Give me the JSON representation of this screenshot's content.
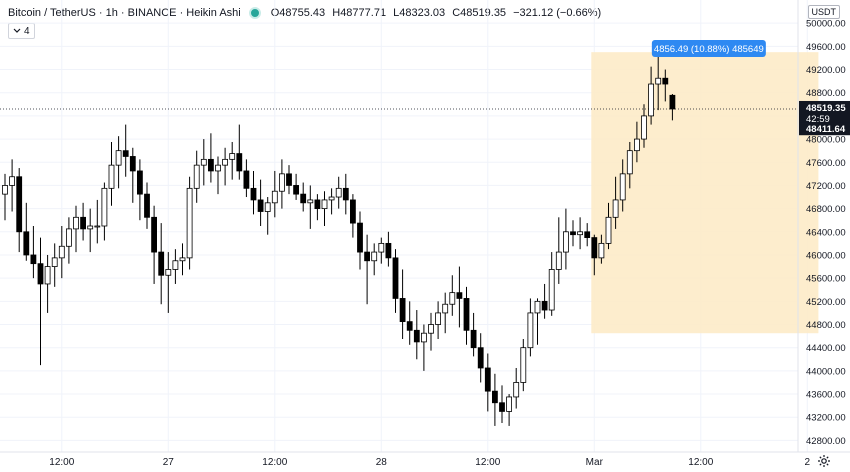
{
  "header": {
    "symbol": "Bitcoin / TetherUS · 1h · BINANCE · Heikin Ashi",
    "ohlc": [
      {
        "k": "O",
        "v": "48755.43"
      },
      {
        "k": "H",
        "v": "48777.71"
      },
      {
        "k": "L",
        "v": "48323.03"
      },
      {
        "k": "C",
        "v": "48519.35"
      },
      {
        "k": "",
        "v": "−321.12 (−0.66%)"
      }
    ],
    "indicator_toggle": "4",
    "currency": "USDT"
  },
  "colors": {
    "up_body": "#ffffff",
    "down_body": "#000000",
    "wick": "#000000",
    "range_fill": "#fdebc8",
    "range_label_bg": "#2e89f2",
    "price_label_bg": "#131722"
  },
  "chart_data": {
    "type": "candlestick",
    "ylim": [
      42600,
      50400
    ],
    "y_ticks": [
      42800,
      43200,
      43600,
      44000,
      44400,
      44800,
      45200,
      45600,
      46000,
      46400,
      46800,
      47200,
      47600,
      48000,
      48400,
      48800,
      49200,
      49600,
      50000
    ],
    "y_tick_labels": [
      "42800.00",
      "43200.00",
      "43600.00",
      "44000.00",
      "44400.00",
      "44800.00",
      "45200.00",
      "45600.00",
      "46000.00",
      "46400.00",
      "46800.00",
      "47200.00",
      "47600.00",
      "48000.00",
      "48400.00",
      "48800.00",
      "49200.00",
      "49600.00",
      "50000.00"
    ],
    "x_ticks": [
      "12:00",
      "27",
      "12:00",
      "28",
      "12:00",
      "Mar",
      "12:00",
      "2"
    ],
    "x_tick_bars": [
      8,
      23,
      38,
      53,
      68,
      83,
      98,
      113
    ],
    "last_price": {
      "value": 48519.35,
      "label": "48519.35",
      "countdown": "42:59",
      "line_value": 48411.64,
      "line_label": "48411.64"
    },
    "range_measure": {
      "start_bar": 83,
      "end_bar": 114,
      "low": 44650,
      "high": 49500,
      "label": "4856.49 (10.88%) 485649"
    },
    "candles": [
      {
        "o": 47050,
        "h": 47400,
        "l": 46600,
        "c": 47200
      },
      {
        "o": 47200,
        "h": 47650,
        "l": 46750,
        "c": 47350
      },
      {
        "o": 47350,
        "h": 47500,
        "l": 46050,
        "c": 46400
      },
      {
        "o": 46400,
        "h": 46900,
        "l": 45900,
        "c": 46000
      },
      {
        "o": 46000,
        "h": 46500,
        "l": 45600,
        "c": 45850
      },
      {
        "o": 45850,
        "h": 46300,
        "l": 44100,
        "c": 45500
      },
      {
        "o": 45500,
        "h": 46000,
        "l": 45000,
        "c": 45800
      },
      {
        "o": 45800,
        "h": 46200,
        "l": 45450,
        "c": 45950
      },
      {
        "o": 45950,
        "h": 46500,
        "l": 45600,
        "c": 46150
      },
      {
        "o": 46150,
        "h": 46650,
        "l": 45850,
        "c": 46450
      },
      {
        "o": 46450,
        "h": 46850,
        "l": 46050,
        "c": 46650
      },
      {
        "o": 46650,
        "h": 46900,
        "l": 46250,
        "c": 46450
      },
      {
        "o": 46450,
        "h": 46800,
        "l": 46050,
        "c": 46500
      },
      {
        "o": 46500,
        "h": 46950,
        "l": 46200,
        "c": 46500
      },
      {
        "o": 46500,
        "h": 47250,
        "l": 46250,
        "c": 47150
      },
      {
        "o": 47150,
        "h": 47950,
        "l": 46850,
        "c": 47550
      },
      {
        "o": 47550,
        "h": 48050,
        "l": 47150,
        "c": 47800
      },
      {
        "o": 47800,
        "h": 48250,
        "l": 47350,
        "c": 47700
      },
      {
        "o": 47700,
        "h": 47850,
        "l": 46900,
        "c": 47450
      },
      {
        "o": 47450,
        "h": 47650,
        "l": 46600,
        "c": 47050
      },
      {
        "o": 47050,
        "h": 47250,
        "l": 46450,
        "c": 46650
      },
      {
        "o": 46650,
        "h": 46850,
        "l": 45500,
        "c": 46050
      },
      {
        "o": 46050,
        "h": 46550,
        "l": 45150,
        "c": 45650
      },
      {
        "o": 45650,
        "h": 46050,
        "l": 45000,
        "c": 45750
      },
      {
        "o": 45750,
        "h": 46100,
        "l": 45500,
        "c": 45900
      },
      {
        "o": 45900,
        "h": 46200,
        "l": 45650,
        "c": 45950
      },
      {
        "o": 45950,
        "h": 47350,
        "l": 45750,
        "c": 47150
      },
      {
        "o": 47150,
        "h": 47800,
        "l": 46900,
        "c": 47550
      },
      {
        "o": 47550,
        "h": 48000,
        "l": 47200,
        "c": 47650
      },
      {
        "o": 47650,
        "h": 48100,
        "l": 47250,
        "c": 47450
      },
      {
        "o": 47450,
        "h": 47700,
        "l": 47050,
        "c": 47550
      },
      {
        "o": 47550,
        "h": 47850,
        "l": 47200,
        "c": 47650
      },
      {
        "o": 47650,
        "h": 47950,
        "l": 47300,
        "c": 47750
      },
      {
        "o": 47750,
        "h": 48250,
        "l": 47300,
        "c": 47450
      },
      {
        "o": 47450,
        "h": 47650,
        "l": 47000,
        "c": 47150
      },
      {
        "o": 47150,
        "h": 47450,
        "l": 46700,
        "c": 46950
      },
      {
        "o": 46950,
        "h": 47300,
        "l": 46500,
        "c": 46750
      },
      {
        "o": 46750,
        "h": 47000,
        "l": 46350,
        "c": 46900
      },
      {
        "o": 46900,
        "h": 47450,
        "l": 46650,
        "c": 47100
      },
      {
        "o": 47100,
        "h": 47650,
        "l": 46800,
        "c": 47400
      },
      {
        "o": 47400,
        "h": 47550,
        "l": 47050,
        "c": 47200
      },
      {
        "o": 47200,
        "h": 47400,
        "l": 46950,
        "c": 47050
      },
      {
        "o": 47050,
        "h": 47250,
        "l": 46750,
        "c": 46900
      },
      {
        "o": 46900,
        "h": 47200,
        "l": 46450,
        "c": 46950
      },
      {
        "o": 46950,
        "h": 47050,
        "l": 46600,
        "c": 46800
      },
      {
        "o": 46800,
        "h": 47100,
        "l": 46500,
        "c": 46950
      },
      {
        "o": 46950,
        "h": 47150,
        "l": 46700,
        "c": 47000
      },
      {
        "o": 47000,
        "h": 47350,
        "l": 46800,
        "c": 47150
      },
      {
        "o": 47150,
        "h": 47400,
        "l": 46700,
        "c": 46950
      },
      {
        "o": 46950,
        "h": 47050,
        "l": 46300,
        "c": 46550
      },
      {
        "o": 46550,
        "h": 46750,
        "l": 45750,
        "c": 46050
      },
      {
        "o": 46050,
        "h": 46350,
        "l": 45150,
        "c": 45900
      },
      {
        "o": 45900,
        "h": 46200,
        "l": 45650,
        "c": 46050
      },
      {
        "o": 46050,
        "h": 46300,
        "l": 45850,
        "c": 46200
      },
      {
        "o": 46200,
        "h": 46400,
        "l": 45800,
        "c": 45950
      },
      {
        "o": 45950,
        "h": 46100,
        "l": 45000,
        "c": 45250
      },
      {
        "o": 45250,
        "h": 45750,
        "l": 44550,
        "c": 44850
      },
      {
        "o": 44850,
        "h": 45200,
        "l": 44450,
        "c": 44700
      },
      {
        "o": 44700,
        "h": 45050,
        "l": 44200,
        "c": 44500
      },
      {
        "o": 44500,
        "h": 44800,
        "l": 44000,
        "c": 44650
      },
      {
        "o": 44650,
        "h": 45000,
        "l": 44350,
        "c": 44800
      },
      {
        "o": 44800,
        "h": 45200,
        "l": 44550,
        "c": 45000
      },
      {
        "o": 45000,
        "h": 45350,
        "l": 44650,
        "c": 45150
      },
      {
        "o": 45150,
        "h": 45650,
        "l": 44950,
        "c": 45350
      },
      {
        "o": 45350,
        "h": 45800,
        "l": 44750,
        "c": 45250
      },
      {
        "o": 45250,
        "h": 45450,
        "l": 44450,
        "c": 44700
      },
      {
        "o": 44700,
        "h": 45000,
        "l": 44250,
        "c": 44400
      },
      {
        "o": 44400,
        "h": 44650,
        "l": 43800,
        "c": 44050
      },
      {
        "o": 44050,
        "h": 44300,
        "l": 43300,
        "c": 43650
      },
      {
        "o": 43650,
        "h": 43950,
        "l": 43050,
        "c": 43450
      },
      {
        "o": 43450,
        "h": 43750,
        "l": 43100,
        "c": 43300
      },
      {
        "o": 43300,
        "h": 43600,
        "l": 43050,
        "c": 43550
      },
      {
        "o": 43550,
        "h": 44050,
        "l": 43350,
        "c": 43800
      },
      {
        "o": 43800,
        "h": 44550,
        "l": 43650,
        "c": 44400
      },
      {
        "o": 44400,
        "h": 45250,
        "l": 44250,
        "c": 45000
      },
      {
        "o": 45000,
        "h": 45250,
        "l": 44450,
        "c": 45200
      },
      {
        "o": 45200,
        "h": 45500,
        "l": 44900,
        "c": 45050
      },
      {
        "o": 45050,
        "h": 46050,
        "l": 44950,
        "c": 45750
      },
      {
        "o": 45750,
        "h": 46650,
        "l": 45500,
        "c": 46050
      },
      {
        "o": 46050,
        "h": 46800,
        "l": 45750,
        "c": 46400
      },
      {
        "o": 46400,
        "h": 46600,
        "l": 46150,
        "c": 46350
      },
      {
        "o": 46350,
        "h": 46650,
        "l": 46100,
        "c": 46400
      },
      {
        "o": 46400,
        "h": 46550,
        "l": 46150,
        "c": 46300
      },
      {
        "o": 46300,
        "h": 46350,
        "l": 45650,
        "c": 45950
      },
      {
        "o": 45950,
        "h": 46350,
        "l": 45850,
        "c": 46200
      },
      {
        "o": 46200,
        "h": 46900,
        "l": 46100,
        "c": 46650
      },
      {
        "o": 46650,
        "h": 47350,
        "l": 46450,
        "c": 46950
      },
      {
        "o": 46950,
        "h": 47650,
        "l": 46750,
        "c": 47400
      },
      {
        "o": 47400,
        "h": 47950,
        "l": 47150,
        "c": 47800
      },
      {
        "o": 47800,
        "h": 48300,
        "l": 47600,
        "c": 48000
      },
      {
        "o": 48000,
        "h": 48600,
        "l": 47850,
        "c": 48400
      },
      {
        "o": 48400,
        "h": 49250,
        "l": 48250,
        "c": 48950
      },
      {
        "o": 48950,
        "h": 49450,
        "l": 48500,
        "c": 49050
      },
      {
        "o": 49050,
        "h": 49200,
        "l": 48650,
        "c": 48950
      },
      {
        "o": 48755.43,
        "h": 48777.71,
        "l": 48323.03,
        "c": 48519.35
      }
    ]
  }
}
